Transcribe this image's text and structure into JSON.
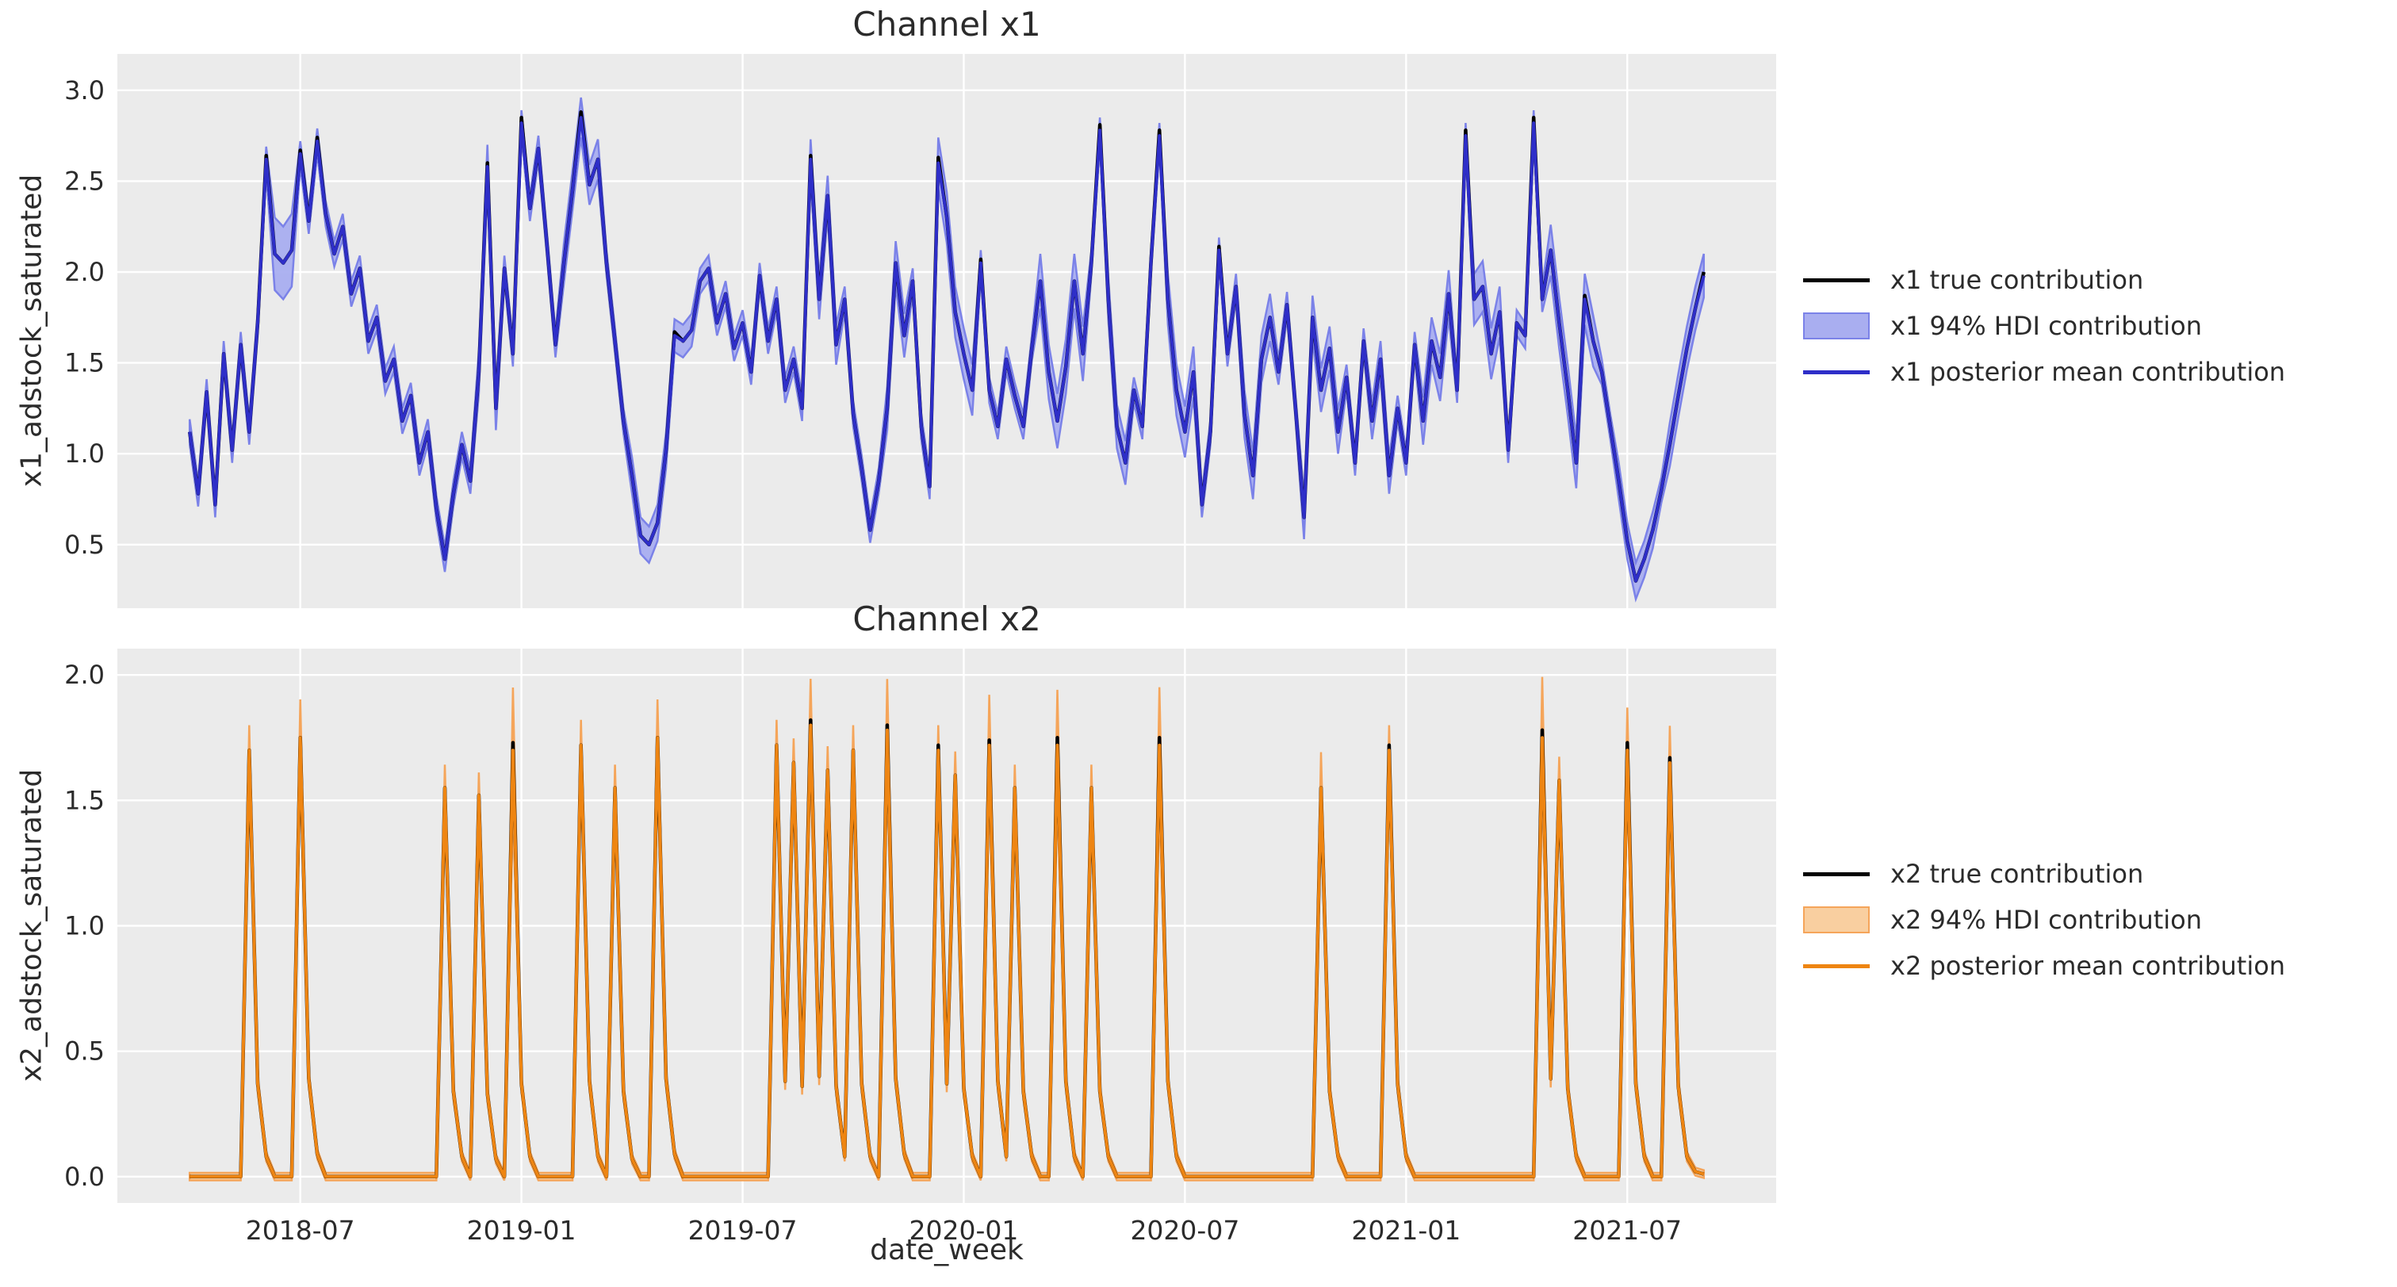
{
  "figure": {
    "background": "#ffffff"
  },
  "styles": {
    "axes_background": "#ebebeb",
    "grid_color": "#ffffff",
    "text_color": "#2b2b2b",
    "channels": [
      {
        "true_color": "#000000",
        "mean_color": "#2e2ec8",
        "band_fill": "#a9aef0",
        "band_edge": "#7b82e8"
      },
      {
        "true_color": "#000000",
        "mean_color": "#ee8512",
        "band_fill": "#f9cfa0",
        "band_edge": "#f5a55a"
      }
    ]
  },
  "xaxis": {
    "label": "date_week",
    "start_date": "2018-04-02",
    "freq": "weekly",
    "n_points": 179,
    "xlim_weeks": [
      -8.5,
      186.5
    ],
    "ticks": [
      {
        "label": "2018-07",
        "week": 13
      },
      {
        "label": "2019-01",
        "week": 39
      },
      {
        "label": "2019-07",
        "week": 65
      },
      {
        "label": "2020-01",
        "week": 91
      },
      {
        "label": "2020-07",
        "week": 117
      },
      {
        "label": "2021-01",
        "week": 143
      },
      {
        "label": "2021-07",
        "week": 169
      }
    ]
  },
  "chart_data": [
    {
      "type": "line",
      "title": "Channel x1",
      "ylabel": "x1_adstock_saturated",
      "ylim": [
        0.15,
        3.2
      ],
      "yticks": [
        0.5,
        1.0,
        1.5,
        2.0,
        2.5,
        3.0
      ],
      "grid": true,
      "legend": [
        {
          "label": "x1 true contribution",
          "swatch": "line",
          "series": "true"
        },
        {
          "label": "x1 94% HDI contribution",
          "swatch": "patch",
          "series": "hdi"
        },
        {
          "label": "x1 posterior mean contribution",
          "swatch": "line",
          "series": "posterior_mean"
        }
      ],
      "posterior_mean": [
        1.12,
        0.78,
        1.34,
        0.72,
        1.55,
        1.02,
        1.6,
        1.12,
        1.72,
        2.62,
        2.1,
        2.05,
        2.12,
        2.65,
        2.28,
        2.72,
        2.32,
        2.1,
        2.25,
        1.88,
        2.02,
        1.62,
        1.75,
        1.4,
        1.52,
        1.18,
        1.32,
        0.95,
        1.12,
        0.7,
        0.42,
        0.78,
        1.05,
        0.85,
        1.45,
        2.58,
        1.25,
        2.02,
        1.55,
        2.82,
        2.35,
        2.68,
        2.15,
        1.6,
        2.05,
        2.45,
        2.85,
        2.48,
        2.62,
        2.05,
        1.62,
        1.18,
        0.88,
        0.55,
        0.5,
        0.62,
        1.02,
        1.65,
        1.62,
        1.68,
        1.95,
        2.02,
        1.72,
        1.88,
        1.58,
        1.72,
        1.45,
        1.98,
        1.62,
        1.85,
        1.35,
        1.52,
        1.25,
        2.62,
        1.85,
        2.42,
        1.6,
        1.85,
        1.22,
        0.92,
        0.58,
        0.85,
        1.25,
        2.05,
        1.65,
        1.95,
        1.15,
        0.82,
        2.6,
        2.3,
        1.78,
        1.55,
        1.35,
        2.05,
        1.35,
        1.15,
        1.52,
        1.32,
        1.15,
        1.58,
        1.95,
        1.45,
        1.18,
        1.48,
        1.95,
        1.55,
        2.05,
        2.78,
        1.85,
        1.15,
        0.95,
        1.35,
        1.15,
        2.05,
        2.75,
        1.85,
        1.35,
        1.12,
        1.45,
        0.72,
        1.12,
        2.12,
        1.55,
        1.92,
        1.22,
        0.88,
        1.52,
        1.75,
        1.45,
        1.82,
        1.25,
        0.65,
        1.75,
        1.35,
        1.58,
        1.12,
        1.42,
        0.95,
        1.62,
        1.18,
        1.52,
        0.88,
        1.25,
        0.95,
        1.6,
        1.18,
        1.62,
        1.42,
        1.88,
        1.35,
        2.75,
        1.85,
        1.92,
        1.55,
        1.78,
        1.02,
        1.72,
        1.65,
        2.82,
        1.85,
        2.12,
        1.72,
        1.35,
        0.95,
        1.85,
        1.62,
        1.45,
        1.15,
        0.85,
        0.52,
        0.3,
        0.42,
        0.58,
        0.8,
        1.05,
        1.32,
        1.58,
        1.8,
        1.98
      ],
      "hdi_width": {
        "base": 0.07,
        "regions": [
          [
            10,
            12,
            0.2
          ],
          [
            34,
            36,
            0.12
          ],
          [
            44,
            48,
            0.11
          ],
          [
            52,
            56,
            0.1
          ],
          [
            57,
            59,
            0.09
          ],
          [
            73,
            76,
            0.11
          ],
          [
            82,
            84,
            0.12
          ],
          [
            88,
            92,
            0.14
          ],
          [
            100,
            105,
            0.15
          ],
          [
            108,
            110,
            0.12
          ],
          [
            115,
            118,
            0.14
          ],
          [
            124,
            127,
            0.13
          ],
          [
            131,
            135,
            0.12
          ],
          [
            139,
            141,
            0.1
          ],
          [
            145,
            148,
            0.13
          ],
          [
            151,
            154,
            0.14
          ],
          [
            160,
            165,
            0.14
          ],
          [
            168,
            172,
            0.1
          ],
          [
            174,
            178,
            0.12
          ]
        ]
      },
      "true_delta": {
        "9": 0.02,
        "13": 0.02,
        "15": 0.02,
        "35": 0.02,
        "39": 0.03,
        "46": 0.03,
        "57": 0.02,
        "73": 0.02,
        "88": 0.03,
        "93": 0.02,
        "107": 0.03,
        "114": 0.03,
        "121": 0.02,
        "150": 0.03,
        "158": 0.03,
        "164": 0.02,
        "178": 0.02
      }
    },
    {
      "type": "line",
      "title": "Channel x2",
      "ylabel": "x2_adstock_saturated",
      "ylim": [
        -0.105,
        2.105
      ],
      "yticks": [
        0.0,
        0.5,
        1.0,
        1.5,
        2.0
      ],
      "grid": true,
      "legend": [
        {
          "label": "x2 true contribution",
          "swatch": "line",
          "series": "true"
        },
        {
          "label": "x2 94% HDI contribution",
          "swatch": "patch",
          "series": "hdi"
        },
        {
          "label": "x2 posterior mean contribution",
          "swatch": "line",
          "series": "posterior_mean"
        }
      ],
      "posterior_mean": [
        0,
        0,
        0,
        0,
        0,
        0,
        0,
        1.7,
        0.37,
        0.08,
        0,
        0,
        0,
        1.75,
        0.39,
        0.09,
        0,
        0,
        0,
        0,
        0,
        0,
        0,
        0,
        0,
        0,
        0,
        0,
        0,
        0,
        1.55,
        0.34,
        0.08,
        0,
        1.52,
        0.33,
        0.07,
        0,
        1.7,
        0.37,
        0.08,
        0,
        0,
        0,
        0,
        0,
        1.72,
        0.38,
        0.08,
        0,
        1.55,
        0.34,
        0.07,
        0,
        0,
        1.75,
        0.39,
        0.09,
        0,
        0,
        0,
        0,
        0,
        0,
        0,
        0,
        0,
        0,
        0,
        1.72,
        0.38,
        1.65,
        0.36,
        1.8,
        0.4,
        1.62,
        0.36,
        0.08,
        1.7,
        0.37,
        0.08,
        0,
        1.78,
        0.39,
        0.09,
        0,
        0,
        0,
        1.7,
        0.37,
        1.6,
        0.35,
        0.08,
        0,
        1.72,
        0.38,
        0.08,
        1.55,
        0.34,
        0.08,
        0,
        0,
        1.72,
        0.38,
        0.08,
        0,
        1.55,
        0.34,
        0.08,
        0,
        0,
        0,
        0,
        0,
        1.72,
        0.38,
        0.08,
        0,
        0,
        0,
        0,
        0,
        0,
        0,
        0,
        0,
        0,
        0,
        0,
        0,
        0,
        0,
        0,
        1.55,
        0.34,
        0.08,
        0,
        0,
        0,
        0,
        0,
        1.7,
        0.37,
        0.08,
        0,
        0,
        0,
        0,
        0,
        0,
        0,
        0,
        0,
        0,
        0,
        0,
        0,
        0,
        0,
        1.75,
        0.39,
        1.58,
        0.35,
        0.08,
        0,
        0,
        0,
        0,
        0,
        1.7,
        0.37,
        0.08,
        0,
        0,
        1.65,
        0.36,
        0.08,
        0.02,
        0.01
      ],
      "hdi_width": {
        "min": 0.015,
        "prop": 0.05,
        "extra": {
          "13": 0.05,
          "38": 0.15,
          "55": 0.05,
          "73": 0.08,
          "82": 0.1,
          "94": 0.1,
          "102": 0.12,
          "114": 0.13,
          "133": 0.05,
          "159": 0.14,
          "169": 0.07,
          "174": 0.05
        }
      },
      "true_delta": {
        "38": 0.03,
        "73": 0.02,
        "82": 0.02,
        "88": 0.02,
        "94": 0.02,
        "102": 0.03,
        "114": 0.03,
        "141": 0.02,
        "159": 0.03,
        "169": 0.03,
        "174": 0.02
      }
    }
  ]
}
